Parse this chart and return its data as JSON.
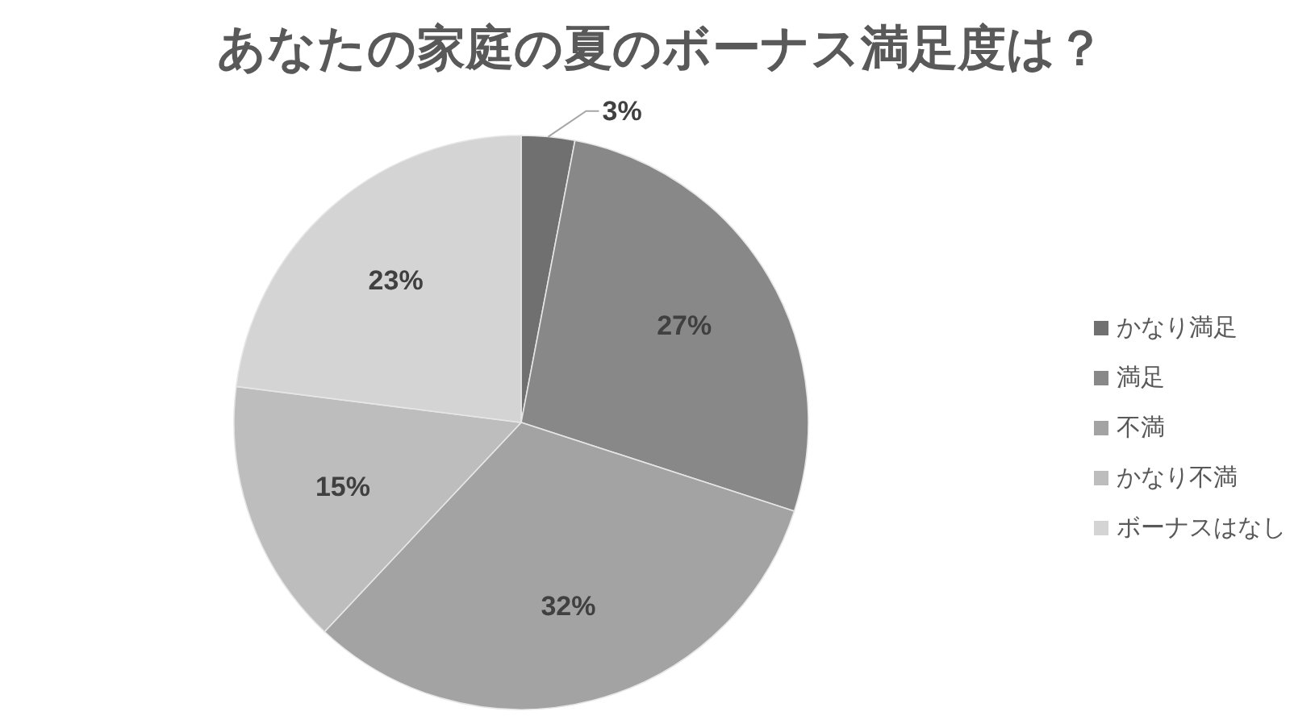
{
  "chart_data": {
    "type": "pie",
    "title": "あなたの家庭の夏のボーナス満足度は？",
    "categories": [
      "かなり満足",
      "満足",
      "不満",
      "かなり不満",
      "ボーナスはなし"
    ],
    "values": [
      3,
      27,
      32,
      15,
      23
    ],
    "value_labels": [
      "3%",
      "27%",
      "32%",
      "15%",
      "23%"
    ],
    "colors": [
      "#707070",
      "#888888",
      "#a3a3a3",
      "#bdbdbd",
      "#d4d4d4"
    ],
    "legend": "right"
  }
}
